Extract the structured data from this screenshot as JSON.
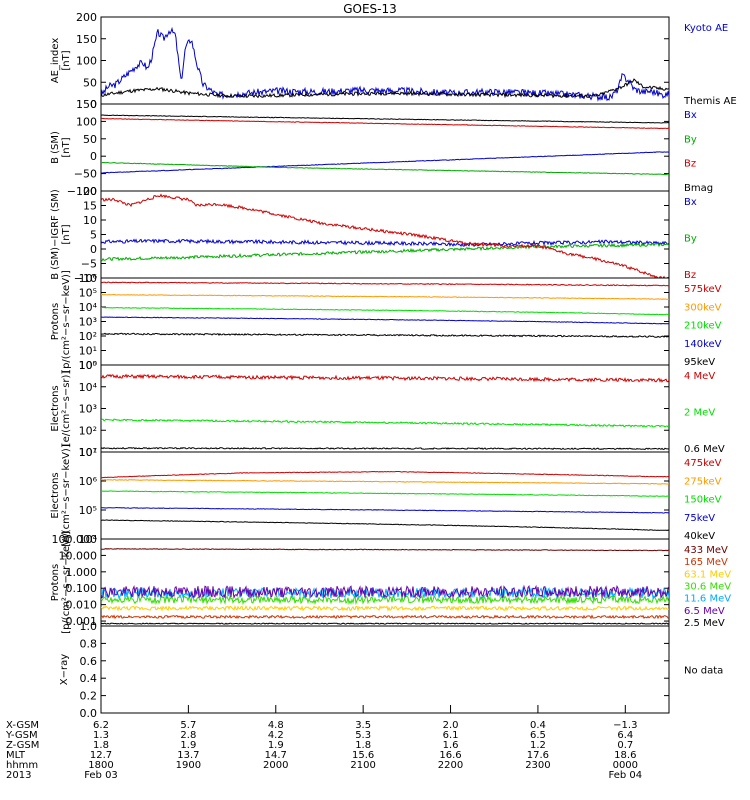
{
  "title": "GOES-13",
  "chart_data": [
    {
      "type": "line",
      "ylabel": [
        "AE_index",
        "[nT]"
      ],
      "ylim": [
        0,
        200
      ],
      "yscale": "linear",
      "yticks": [
        0,
        50,
        100,
        150,
        200
      ],
      "ytick_labels": [
        "0",
        "50",
        "100",
        "150",
        "200"
      ],
      "series": [
        {
          "name": "Kyoto AE",
          "color": "#0000cc",
          "noise": 8,
          "seed": 3,
          "x": [
            0,
            5,
            10,
            15,
            20,
            25,
            29,
            32,
            35,
            39,
            43,
            47,
            51,
            55,
            58,
            62,
            66,
            70,
            80,
            100,
            120,
            150,
            180,
            210,
            240,
            270,
            300,
            330,
            350,
            355,
            358,
            362,
            366,
            372,
            378,
            384
          ],
          "y": [
            20,
            40,
            45,
            60,
            75,
            90,
            95,
            80,
            110,
            165,
            150,
            170,
            160,
            50,
            130,
            150,
            90,
            45,
            20,
            25,
            30,
            28,
            32,
            30,
            25,
            28,
            25,
            20,
            15,
            35,
            65,
            55,
            35,
            28,
            30,
            22
          ]
        },
        {
          "name": "Themis AE",
          "color": "#000000",
          "noise": 4,
          "seed": 11,
          "x": [
            0,
            20,
            40,
            60,
            80,
            100,
            150,
            200,
            250,
            300,
            340,
            358,
            366,
            372,
            384
          ],
          "y": [
            20,
            30,
            35,
            25,
            20,
            18,
            22,
            25,
            22,
            20,
            18,
            40,
            55,
            40,
            35
          ]
        }
      ]
    },
    {
      "type": "line",
      "ylabel": [
        "B (SM)",
        "[nT]"
      ],
      "ylim": [
        -100,
        150
      ],
      "yscale": "linear",
      "yticks": [
        -100,
        -50,
        0,
        50,
        100,
        150
      ],
      "ytick_labels": [
        "−100",
        "−50",
        "0",
        "50",
        "100",
        "150"
      ],
      "series": [
        {
          "name": "Bx",
          "color": "#0000cc",
          "noise": 0.8,
          "seed": 21,
          "x": [
            0,
            384
          ],
          "y": [
            -48,
            12
          ]
        },
        {
          "name": "By",
          "color": "#00aa00",
          "noise": 0.8,
          "seed": 22,
          "x": [
            0,
            130,
            384
          ],
          "y": [
            -18,
            -33,
            -52
          ]
        },
        {
          "name": "Bz",
          "color": "#cc0000",
          "noise": 0.8,
          "seed": 23,
          "x": [
            0,
            384
          ],
          "y": [
            108,
            80
          ]
        },
        {
          "name": "Bmag",
          "color": "#000000",
          "noise": 0.8,
          "seed": 24,
          "x": [
            0,
            384
          ],
          "y": [
            118,
            96
          ]
        }
      ]
    },
    {
      "type": "line",
      "ylabel": [
        "B (SM)−IGRF (SM)",
        "[nT]"
      ],
      "ylim": [
        -10,
        20
      ],
      "yscale": "linear",
      "yticks": [
        -10,
        -5,
        0,
        5,
        10,
        15,
        20
      ],
      "ytick_labels": [
        "−10",
        "−5",
        "0",
        "5",
        "10",
        "15",
        "20"
      ],
      "series": [
        {
          "name": "Bx",
          "color": "#0000cc",
          "noise": 0.6,
          "seed": 31,
          "x": [
            0,
            40,
            100,
            200,
            250,
            300,
            350,
            384
          ],
          "y": [
            2.5,
            2.8,
            2.5,
            2.0,
            1.5,
            2.0,
            2.5,
            2.0
          ]
        },
        {
          "name": "By",
          "color": "#00aa00",
          "noise": 0.5,
          "seed": 32,
          "x": [
            0,
            50,
            150,
            250,
            300,
            384
          ],
          "y": [
            -3.5,
            -3,
            -1.5,
            0,
            0.8,
            1.5
          ]
        },
        {
          "name": "Bz",
          "color": "#cc0000",
          "noise": 0.5,
          "seed": 33,
          "x": [
            0,
            10,
            20,
            40,
            60,
            65,
            80,
            100,
            120,
            150,
            180,
            220,
            250,
            280,
            300,
            320,
            340,
            360,
            375,
            384
          ],
          "y": [
            17,
            17,
            15,
            18.5,
            17,
            15,
            15.5,
            14,
            12,
            9,
            7,
            4.5,
            2,
            1,
            1,
            -1.5,
            -3.5,
            -6,
            -8.5,
            -10
          ]
        }
      ]
    },
    {
      "type": "line",
      "ylabel": [
        "Protons",
        "[p/(cm²−s−sr−keV)]"
      ],
      "ylim": [
        1,
        1000000
      ],
      "yscale": "log",
      "yticks": [
        1,
        10,
        100,
        1000,
        10000,
        100000,
        1000000
      ],
      "ytick_labels": [
        "10⁰",
        "10¹",
        "10²",
        "10³",
        "10⁴",
        "10⁵",
        "10⁶"
      ],
      "series": [
        {
          "name": "575keV",
          "color": "#cc0000",
          "noise": 0.03,
          "seed": 41,
          "x": [
            0,
            384
          ],
          "y": [
            500000,
            300000
          ]
        },
        {
          "name": "300keV",
          "color": "#ff9900",
          "noise": 0.02,
          "seed": 42,
          "x": [
            0,
            384
          ],
          "y": [
            70000,
            35000
          ]
        },
        {
          "name": "210keV",
          "color": "#00dd00",
          "noise": 0.02,
          "seed": 43,
          "x": [
            0,
            384
          ],
          "y": [
            9000,
            3000
          ]
        },
        {
          "name": "140keV",
          "color": "#0000cc",
          "noise": 0.02,
          "seed": 44,
          "x": [
            0,
            384
          ],
          "y": [
            2000,
            700
          ]
        },
        {
          "name": "95keV",
          "color": "#000000",
          "noise": 0.05,
          "seed": 45,
          "x": [
            0,
            384
          ],
          "y": [
            140,
            90
          ]
        }
      ]
    },
    {
      "type": "line",
      "ylabel": [
        "Electrons",
        "[e/(cm²−s−sr)]"
      ],
      "ylim": [
        10,
        100000
      ],
      "yscale": "log",
      "yticks": [
        10,
        100,
        1000,
        10000,
        100000
      ],
      "ytick_labels": [
        "10¹",
        "10²",
        "10³",
        "10⁴",
        "10⁵"
      ],
      "series": [
        {
          "name": "4 MeV",
          "color": "#cc0000",
          "noise": 0.08,
          "seed": 51,
          "x": [
            0,
            384
          ],
          "y": [
            30000,
            20000
          ]
        },
        {
          "name": "2 MeV",
          "color": "#00dd00",
          "noise": 0.04,
          "seed": 52,
          "x": [
            0,
            384
          ],
          "y": [
            300,
            150
          ]
        },
        {
          "name": "0.6 MeV",
          "color": "#000000",
          "noise": 0.03,
          "seed": 53,
          "x": [
            0,
            384
          ],
          "y": [
            15,
            14
          ]
        }
      ]
    },
    {
      "type": "line",
      "ylabel": [
        "Electrons",
        "[e/(cm²−s−sr−keV)]"
      ],
      "ylim": [
        10000,
        10000000
      ],
      "yscale": "log",
      "yticks": [
        10000,
        100000,
        1000000,
        10000000
      ],
      "ytick_labels": [
        "10⁴",
        "10⁵",
        "10⁶",
        "10⁷"
      ],
      "series": [
        {
          "name": "475keV",
          "color": "#cc0000",
          "noise": 0.01,
          "seed": 61,
          "x": [
            0,
            100,
            200,
            384
          ],
          "y": [
            1300000,
            1900000,
            2100000,
            1400000
          ]
        },
        {
          "name": "275keV",
          "color": "#ff9900",
          "noise": 0.01,
          "seed": 62,
          "x": [
            0,
            384
          ],
          "y": [
            1100000,
            800000
          ]
        },
        {
          "name": "150keV",
          "color": "#00dd00",
          "noise": 0.01,
          "seed": 63,
          "x": [
            0,
            384
          ],
          "y": [
            450000,
            300000
          ]
        },
        {
          "name": "75keV",
          "color": "#0000cc",
          "noise": 0.01,
          "seed": 64,
          "x": [
            0,
            384
          ],
          "y": [
            120000,
            80000
          ]
        },
        {
          "name": "40keV",
          "color": "#000000",
          "noise": 0.01,
          "seed": 65,
          "x": [
            0,
            384
          ],
          "y": [
            45000,
            20000
          ]
        }
      ]
    },
    {
      "type": "line",
      "ylabel": [
        "Protons",
        "[p/(cm²−s−sr−keV)]"
      ],
      "ylim": [
        0.0005,
        100
      ],
      "yscale": "log",
      "yticks": [
        0.001,
        0.01,
        0.1,
        1,
        10,
        100
      ],
      "ytick_labels": [
        "0.001",
        "0.010",
        "0.100",
        "1.000",
        "10.000",
        "100.000"
      ],
      "series": [
        {
          "name": "433 MeV",
          "color": "#660000",
          "noise": 0.02,
          "seed": 71,
          "x": [
            0,
            384
          ],
          "y": [
            25,
            20
          ]
        },
        {
          "name": "165 MeV",
          "color": "#cc3300",
          "noise": 0.08,
          "seed": 72,
          "x": [
            0,
            384
          ],
          "y": [
            0.0018,
            0.0018
          ]
        },
        {
          "name": "63.1 MeV",
          "color": "#ffcc00",
          "noise": 0.12,
          "seed": 73,
          "x": [
            0,
            384
          ],
          "y": [
            0.006,
            0.006
          ]
        },
        {
          "name": "30.6 MeV",
          "color": "#33dd00",
          "noise": 0.22,
          "seed": 74,
          "x": [
            0,
            384
          ],
          "y": [
            0.02,
            0.02
          ]
        },
        {
          "name": "11.6 MeV",
          "color": "#00aaff",
          "noise": 0.3,
          "seed": 75,
          "x": [
            0,
            384
          ],
          "y": [
            0.05,
            0.05
          ]
        },
        {
          "name": "6.5 MeV",
          "color": "#6600aa",
          "noise": 0.35,
          "seed": 76,
          "x": [
            0,
            384
          ],
          "y": [
            0.06,
            0.06
          ]
        },
        {
          "name": "2.5 MeV",
          "color": "#000000",
          "noise": 0.03,
          "seed": 77,
          "x": [
            0,
            384
          ],
          "y": [
            0.0007,
            0.0007
          ]
        }
      ]
    },
    {
      "type": "line",
      "ylabel": [
        "X−ray"
      ],
      "ylim": [
        0,
        1
      ],
      "yscale": "linear",
      "yticks": [
        0,
        0.2,
        0.4,
        0.6,
        0.8,
        1.0
      ],
      "ytick_labels": [
        "0.0",
        "0.2",
        "0.4",
        "0.6",
        "0.8",
        "1.0"
      ],
      "series": [],
      "note": "No data"
    }
  ],
  "x_axis": {
    "range_minutes": [
      0,
      390
    ],
    "ticks_minutes": [
      0,
      60,
      120,
      180,
      240,
      300,
      360
    ],
    "rows": [
      {
        "label": "X-GSM",
        "values": [
          "6.2",
          "5.7",
          "4.8",
          "3.5",
          "2.0",
          "0.4",
          "−1.3"
        ]
      },
      {
        "label": "Y-GSM",
        "values": [
          "1.3",
          "2.8",
          "4.2",
          "5.3",
          "6.1",
          "6.5",
          "6.4"
        ]
      },
      {
        "label": "Z-GSM",
        "values": [
          "1.8",
          "1.9",
          "1.9",
          "1.8",
          "1.6",
          "1.2",
          "0.7"
        ]
      },
      {
        "label": "MLT",
        "values": [
          "12.7",
          "13.7",
          "14.7",
          "15.6",
          "16.6",
          "17.6",
          "18.6"
        ]
      },
      {
        "label": "hhmm",
        "values": [
          "1800",
          "1900",
          "2000",
          "2100",
          "2200",
          "2300",
          "0000"
        ]
      },
      {
        "label": "2013",
        "values": [
          "Feb 03",
          "",
          "",
          "",
          "",
          "",
          "Feb 04"
        ]
      }
    ]
  }
}
